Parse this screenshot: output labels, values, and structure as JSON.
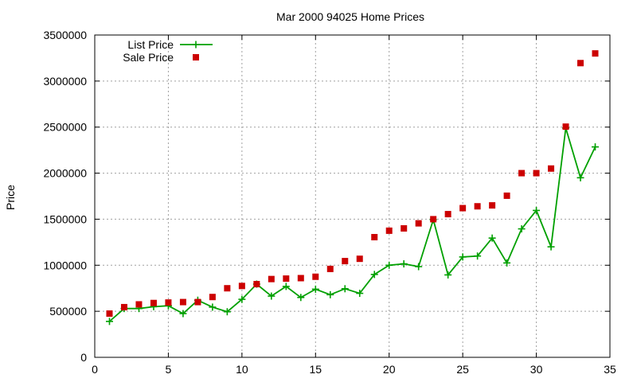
{
  "chart_data": {
    "type": "line",
    "title": "Mar 2000 94025 Home Prices",
    "xlabel": "",
    "ylabel": "Price",
    "xlim": [
      0,
      35
    ],
    "ylim": [
      0,
      3500000
    ],
    "xticks": [
      0,
      5,
      10,
      15,
      20,
      25,
      30,
      35
    ],
    "yticks": [
      0,
      500000,
      1000000,
      1500000,
      2000000,
      2500000,
      3000000,
      3500000
    ],
    "xtick_labels": [
      "0",
      "5",
      "10",
      "15",
      "20",
      "25",
      "30",
      "35"
    ],
    "ytick_labels": [
      "0",
      "500000",
      "1000000",
      "1500000",
      "2000000",
      "2500000",
      "3000000",
      "3500000"
    ],
    "grid": true,
    "legend_position": "top-left",
    "series": [
      {
        "name": "List Price",
        "style": "linespoints",
        "marker": "plus",
        "color": "#00a000",
        "x": [
          1,
          2,
          3,
          4,
          5,
          6,
          7,
          8,
          9,
          10,
          11,
          12,
          13,
          14,
          15,
          16,
          17,
          18,
          19,
          20,
          21,
          22,
          23,
          24,
          25,
          26,
          27,
          28,
          29,
          30,
          31,
          32,
          33,
          34
        ],
        "values": [
          390000,
          530000,
          530000,
          550000,
          560000,
          475000,
          620000,
          545000,
          495000,
          630000,
          795000,
          665000,
          770000,
          650000,
          740000,
          680000,
          745000,
          695000,
          900000,
          1000000,
          1015000,
          985000,
          1495000,
          895000,
          1090000,
          1100000,
          1295000,
          1025000,
          1395000,
          1595000,
          1200000,
          2490000,
          1950000,
          2285000
        ]
      },
      {
        "name": "Sale Price",
        "style": "points",
        "marker": "square",
        "color": "#cc0000",
        "x": [
          1,
          2,
          3,
          4,
          5,
          6,
          7,
          8,
          9,
          10,
          11,
          12,
          13,
          14,
          15,
          16,
          17,
          18,
          19,
          20,
          21,
          22,
          23,
          24,
          25,
          26,
          27,
          28,
          29,
          30,
          31,
          32,
          33,
          34
        ],
        "values": [
          475000,
          545000,
          575000,
          590000,
          595000,
          600000,
          600000,
          655000,
          750000,
          775000,
          795000,
          850000,
          855000,
          860000,
          875000,
          960000,
          1045000,
          1070000,
          1305000,
          1375000,
          1400000,
          1455000,
          1500000,
          1555000,
          1620000,
          1640000,
          1650000,
          1755000,
          2000000,
          2000000,
          2050000,
          2505000,
          3195000,
          3300000
        ]
      }
    ]
  }
}
